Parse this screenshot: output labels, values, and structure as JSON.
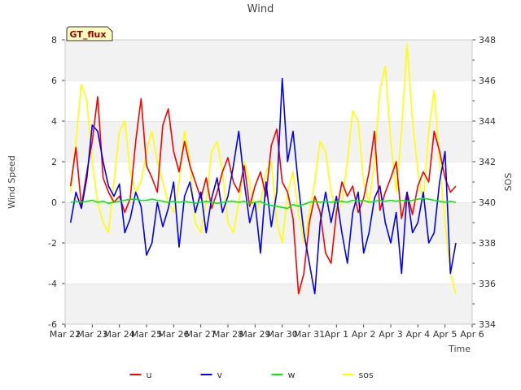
{
  "chart_data": {
    "type": "line",
    "title": "Wind",
    "xlabel": "Time",
    "ylabel": "Wind Speed",
    "y2label": "SOS",
    "xlim": [
      "Mar 22",
      "Apr 6"
    ],
    "x_ticks": [
      "Mar 22",
      "Mar 23",
      "Mar 24",
      "Mar 25",
      "Mar 26",
      "Mar 27",
      "Mar 28",
      "Mar 29",
      "Mar 30",
      "Mar 31",
      "Apr 1",
      "Apr 2",
      "Apr 3",
      "Apr 4",
      "Apr 5",
      "Apr 6"
    ],
    "ylim": [
      -6,
      8
    ],
    "y_ticks": [
      -6,
      -4,
      -2,
      0,
      2,
      4,
      6,
      8
    ],
    "y2lim": [
      334,
      348
    ],
    "y2_ticks": [
      334,
      336,
      338,
      340,
      342,
      344,
      346,
      348
    ],
    "grid": "horizontal bands",
    "legend": "bottom-center",
    "annotation": "GT_flux",
    "colors": {
      "u": "#ff0000",
      "v": "#0000ff",
      "w": "#00ee00",
      "sos": "#ffff00"
    },
    "x_days": [
      0.2,
      0.4,
      0.6,
      0.8,
      1.0,
      1.2,
      1.4,
      1.6,
      1.8,
      2.0,
      2.2,
      2.4,
      2.6,
      2.8,
      3.0,
      3.2,
      3.4,
      3.6,
      3.8,
      4.0,
      4.2,
      4.4,
      4.6,
      4.8,
      5.0,
      5.2,
      5.4,
      5.6,
      5.8,
      6.0,
      6.2,
      6.4,
      6.6,
      6.8,
      7.0,
      7.2,
      7.4,
      7.6,
      7.8,
      8.0,
      8.2,
      8.4,
      8.6,
      8.8,
      9.0,
      9.2,
      9.4,
      9.6,
      9.8,
      10.0,
      10.2,
      10.4,
      10.6,
      10.8,
      11.0,
      11.2,
      11.4,
      11.6,
      11.8,
      12.0,
      12.2,
      12.4,
      12.6,
      12.8,
      13.0,
      13.2,
      13.4,
      13.6,
      13.8,
      14.0,
      14.2,
      14.4
    ],
    "series": [
      {
        "name": "u",
        "axis": "left",
        "values": [
          0.8,
          2.7,
          -0.2,
          1.5,
          3.0,
          5.2,
          1.2,
          0.5,
          0,
          0.3,
          -0.5,
          0.2,
          3.0,
          5.1,
          1.8,
          1.2,
          0.5,
          3.8,
          4.6,
          2.5,
          1.5,
          3.0,
          1.8,
          1.0,
          0.2,
          1.2,
          -0.3,
          0.5,
          1.5,
          2.2,
          1.0,
          0.5,
          1.8,
          -0.2,
          0.8,
          1.5,
          0.3,
          2.8,
          3.6,
          1.0,
          0.5,
          -0.8,
          -4.5,
          -3.5,
          -1.0,
          0.3,
          -0.5,
          -2.5,
          -3.0,
          -0.5,
          1.0,
          0.3,
          0.8,
          -0.5,
          0.2,
          1.5,
          3.5,
          -0.4,
          0.5,
          1.2,
          2.0,
          -0.8,
          0.5,
          -0.6,
          0.8,
          1.5,
          1.0,
          3.5,
          2.5,
          1.2,
          0.5,
          0.8
        ]
      },
      {
        "name": "v",
        "axis": "left",
        "values": [
          -1.0,
          0.5,
          -0.3,
          1.2,
          3.8,
          3.5,
          2.0,
          0.8,
          0.3,
          0.9,
          -1.5,
          -0.8,
          0.5,
          -0.2,
          -2.6,
          -2.0,
          0,
          -1.2,
          -0.3,
          1.0,
          -2.2,
          0.3,
          1.0,
          -0.5,
          0.5,
          -1.5,
          0.2,
          1.2,
          -0.5,
          0.3,
          1.8,
          3.5,
          1.0,
          -1.0,
          0,
          -2.5,
          1.0,
          -1.2,
          0.5,
          6.1,
          2.0,
          3.5,
          0.8,
          -1.5,
          -3.0,
          -4.5,
          -1.0,
          0.5,
          -1.0,
          0.3,
          -1.5,
          -3.0,
          -0.5,
          0.5,
          -2.5,
          -1.5,
          0.2,
          0.8,
          -1.0,
          -2.0,
          -0.5,
          -3.5,
          0.5,
          -1.5,
          -1.0,
          0.5,
          -2.0,
          -1.5,
          1.0,
          2.5,
          -3.5,
          -2.0
        ]
      },
      {
        "name": "w",
        "axis": "left",
        "values": [
          0,
          0.05,
          0,
          0.05,
          0.1,
          0,
          0.05,
          -0.05,
          0,
          0.05,
          0.1,
          0.15,
          0.15,
          0.1,
          0.1,
          0.15,
          0.1,
          0.05,
          0,
          0.05,
          0,
          0.05,
          0,
          -0.05,
          0,
          0.05,
          0,
          -0.05,
          0,
          0.05,
          0.05,
          0,
          0.05,
          -0.05,
          0,
          0.05,
          -0.1,
          -0.15,
          -0.2,
          -0.25,
          -0.3,
          -0.1,
          -0.2,
          -0.1,
          0,
          0.05,
          0,
          0.05,
          0,
          0.05,
          0.05,
          0,
          0.1,
          0.05,
          0.1,
          0,
          0.05,
          0.1,
          0.05,
          0.1,
          0.05,
          0.1,
          0.05,
          0.1,
          0.15,
          0.2,
          0.15,
          0.1,
          0.05,
          0,
          0.05,
          0
        ]
      },
      {
        "name": "sos",
        "axis": "right",
        "values": [
          340.5,
          343.0,
          345.8,
          345.0,
          342.0,
          340.0,
          339.0,
          338.5,
          341.0,
          343.5,
          344.0,
          341.5,
          340.5,
          341.0,
          342.5,
          343.5,
          342.0,
          341.0,
          340.0,
          339.5,
          341.0,
          343.5,
          342.0,
          339.0,
          338.5,
          340.0,
          342.5,
          343.0,
          341.5,
          339.0,
          338.5,
          340.0,
          342.0,
          341.0,
          339.5,
          340.0,
          341.5,
          342.0,
          339.0,
          338.0,
          340.5,
          341.5,
          339.5,
          338.0,
          339.5,
          341.0,
          343.0,
          342.5,
          340.5,
          339.5,
          340.0,
          342.0,
          344.5,
          344.0,
          341.0,
          340.0,
          342.0,
          345.5,
          346.7,
          343.0,
          340.5,
          343.5,
          347.8,
          344.0,
          341.5,
          340.0,
          343.5,
          345.5,
          342.0,
          339.0,
          336.5,
          335.5
        ]
      }
    ]
  }
}
